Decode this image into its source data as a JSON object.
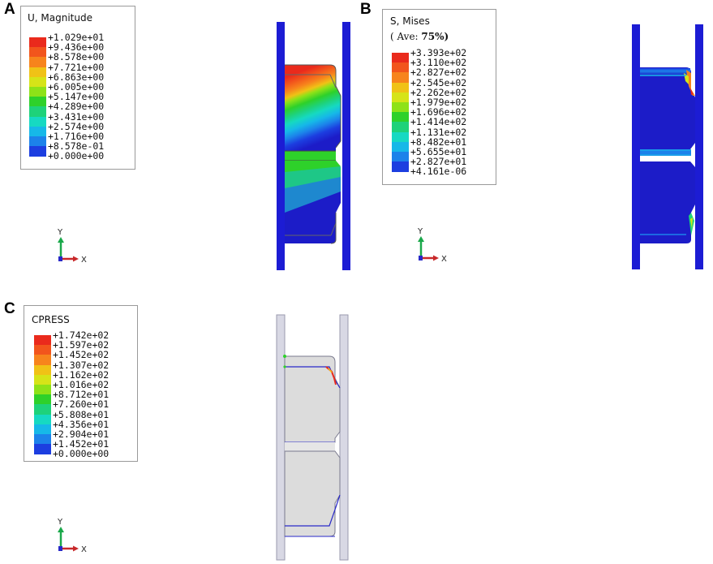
{
  "panels": [
    {
      "id": "A",
      "letter": "A",
      "legend": {
        "title": "U, Magnitude",
        "subtitle": "",
        "entries": [
          {
            "value": "+1.029e+01",
            "color": "#ea2a1c"
          },
          {
            "value": "+9.436e+00",
            "color": "#f2551c"
          },
          {
            "value": "+8.578e+00",
            "color": "#f7841c"
          },
          {
            "value": "+7.721e+00",
            "color": "#f0c216"
          },
          {
            "value": "+6.863e+00",
            "color": "#d6e418"
          },
          {
            "value": "+6.005e+00",
            "color": "#8ee218"
          },
          {
            "value": "+5.147e+00",
            "color": "#2ed12a"
          },
          {
            "value": "+4.289e+00",
            "color": "#1ed27a"
          },
          {
            "value": "+3.431e+00",
            "color": "#16d9c2"
          },
          {
            "value": "+2.574e+00",
            "color": "#16b8e8"
          },
          {
            "value": "+1.716e+00",
            "color": "#1c82ea"
          },
          {
            "value": "+8.578e-01",
            "color": "#1c3ee0"
          },
          {
            "value": "+0.000e+00",
            "color": "#1c1cc8"
          }
        ]
      },
      "triad": {
        "y_label": "Y",
        "x_label": "X"
      },
      "model_type": "displacement-contour"
    },
    {
      "id": "B",
      "letter": "B",
      "legend": {
        "title": "S, Mises",
        "subtitle_pre": "( Ave: ",
        "subtitle_emph": "75%)",
        "entries": [
          {
            "value": "+3.393e+02",
            "color": "#ea2a1c"
          },
          {
            "value": "+3.110e+02",
            "color": "#f2551c"
          },
          {
            "value": "+2.827e+02",
            "color": "#f7841c"
          },
          {
            "value": "+2.545e+02",
            "color": "#f0c216"
          },
          {
            "value": "+2.262e+02",
            "color": "#d6e418"
          },
          {
            "value": "+1.979e+02",
            "color": "#8ee218"
          },
          {
            "value": "+1.696e+02",
            "color": "#2ed12a"
          },
          {
            "value": "+1.414e+02",
            "color": "#1ed27a"
          },
          {
            "value": "+1.131e+02",
            "color": "#16d9c2"
          },
          {
            "value": "+8.482e+01",
            "color": "#16b8e8"
          },
          {
            "value": "+5.655e+01",
            "color": "#1c82ea"
          },
          {
            "value": "+2.827e+01",
            "color": "#1c3ee0"
          },
          {
            "value": "+4.161e-06",
            "color": "#1c1cc8"
          }
        ]
      },
      "triad": {
        "y_label": "Y",
        "x_label": "X"
      },
      "model_type": "stress-contour"
    },
    {
      "id": "C",
      "letter": "C",
      "legend": {
        "title": "CPRESS",
        "subtitle": "",
        "entries": [
          {
            "value": "+1.742e+02",
            "color": "#ea2a1c"
          },
          {
            "value": "+1.597e+02",
            "color": "#f2551c"
          },
          {
            "value": "+1.452e+02",
            "color": "#f7841c"
          },
          {
            "value": "+1.307e+02",
            "color": "#f0c216"
          },
          {
            "value": "+1.162e+02",
            "color": "#d6e418"
          },
          {
            "value": "+1.016e+02",
            "color": "#8ee218"
          },
          {
            "value": "+8.712e+01",
            "color": "#2ed12a"
          },
          {
            "value": "+7.260e+01",
            "color": "#1ed27a"
          },
          {
            "value": "+5.808e+01",
            "color": "#16d9c2"
          },
          {
            "value": "+4.356e+01",
            "color": "#16b8e8"
          },
          {
            "value": "+2.904e+01",
            "color": "#1c82ea"
          },
          {
            "value": "+1.452e+01",
            "color": "#1c3ee0"
          },
          {
            "value": "+0.000e+00",
            "color": "#1c1cc8"
          }
        ]
      },
      "triad": {
        "y_label": "Y",
        "x_label": "X"
      },
      "model_type": "contact-pressure"
    }
  ],
  "colors": {
    "deep_blue": "#1c1cc8",
    "plate_blue": "#1c1cd4",
    "outline_blue": "#2828c8",
    "gray_fill": "#dcdcdc",
    "gray_plate": "#d8d8e4",
    "triad_y": "#1aa84a",
    "triad_x": "#c8282a",
    "triad_z": "#2828c8"
  }
}
